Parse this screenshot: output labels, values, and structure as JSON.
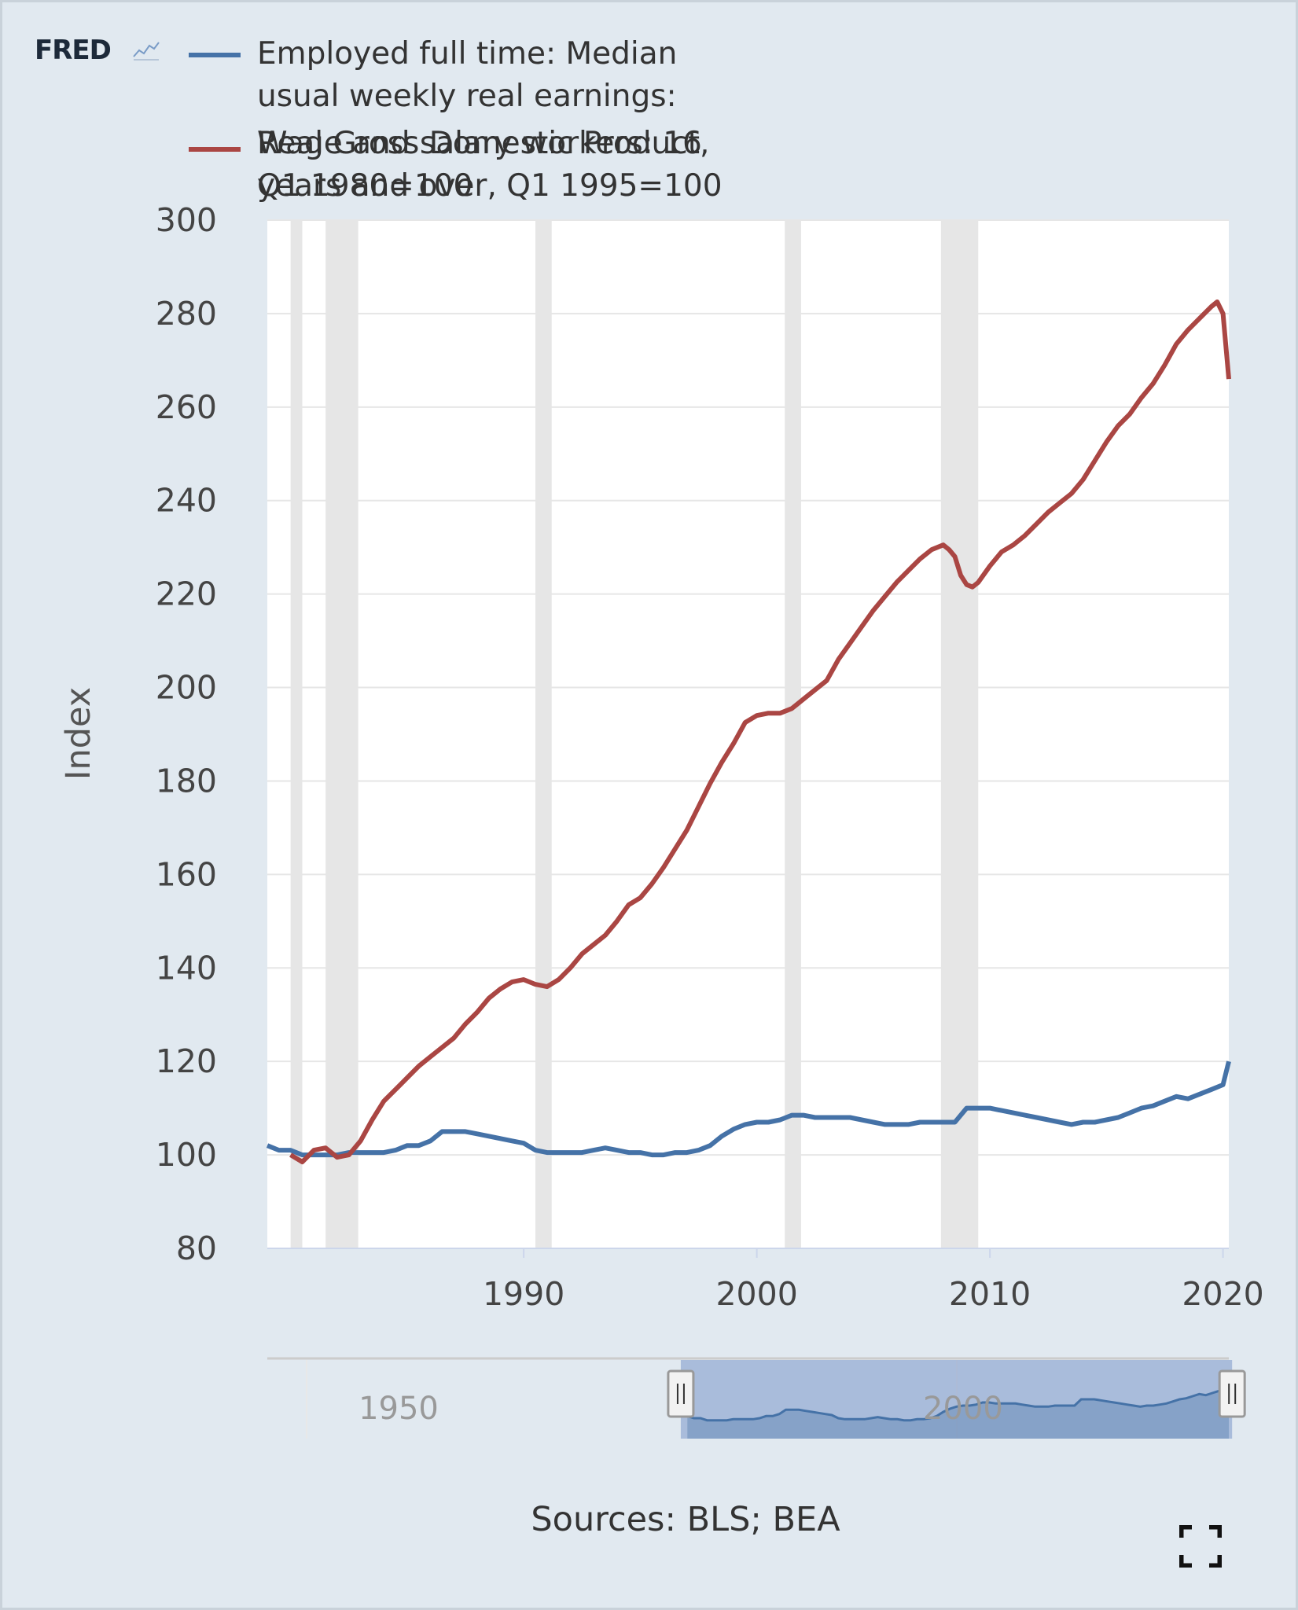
{
  "header": {
    "logo_text": "FRED",
    "logo_mark_icon": "sparkline-icon"
  },
  "legend": [
    {
      "color": "#4572a7",
      "lines": [
        "Employed full time: Median",
        "usual weekly real earnings:"
      ]
    },
    {
      "color": "#aa4643",
      "lines": [
        "Real Gross Domestic Product,",
        "Q1 1980=100"
      ]
    },
    {
      "color": "#aa4643",
      "lines": [
        "Wage and salary workers: 16",
        "years and over, Q1 1995=100"
      ]
    }
  ],
  "footer": {
    "sources": "Sources: BLS; BEA",
    "expand_icon": "fullscreen-icon"
  },
  "navigator": {
    "labels": [
      {
        "text": "1950",
        "year": 1957
      },
      {
        "text": "2000",
        "year": 2000
      }
    ],
    "range_start": 1978.5,
    "range_end": 2020.5,
    "series_range": [
      1979,
      2020.25
    ],
    "data_range": [
      1947,
      2020.25
    ],
    "handle_icon": "drag-handle-icon"
  },
  "chart_data": {
    "type": "line",
    "ylabel": "Index",
    "xlabel": "",
    "xlim": [
      1979.0,
      2020.25
    ],
    "ylim": [
      80,
      300
    ],
    "yticks": [
      80,
      100,
      120,
      140,
      160,
      180,
      200,
      220,
      240,
      260,
      280,
      300
    ],
    "xticks": [
      1990,
      2000,
      2010,
      2020
    ],
    "recessions": [
      [
        1980.0,
        1980.5
      ],
      [
        1981.5,
        1982.9
      ],
      [
        1990.5,
        1991.2
      ],
      [
        2001.2,
        2001.9
      ],
      [
        2007.9,
        2009.5
      ]
    ],
    "grid": true,
    "legend_position": "top-left",
    "series": [
      {
        "name": "Employed full time: Median usual weekly real earnings: Wage and salary workers: 16 years and over, Q1 1995=100",
        "color": "#4572a7",
        "x": [
          1979.0,
          1979.5,
          1980.0,
          1980.5,
          1981.0,
          1981.5,
          1982.0,
          1982.5,
          1983.0,
          1983.5,
          1984.0,
          1984.5,
          1985.0,
          1985.5,
          1986.0,
          1986.5,
          1987.0,
          1987.5,
          1988.0,
          1988.5,
          1989.0,
          1989.5,
          1990.0,
          1990.5,
          1991.0,
          1991.5,
          1992.0,
          1992.5,
          1993.0,
          1993.5,
          1994.0,
          1994.5,
          1995.0,
          1995.5,
          1996.0,
          1996.5,
          1997.0,
          1997.5,
          1998.0,
          1998.5,
          1999.0,
          1999.5,
          2000.0,
          2000.5,
          2001.0,
          2001.5,
          2002.0,
          2002.5,
          2003.0,
          2003.5,
          2004.0,
          2004.5,
          2005.0,
          2005.5,
          2006.0,
          2006.5,
          2007.0,
          2007.5,
          2008.0,
          2008.5,
          2009.0,
          2009.5,
          2010.0,
          2010.5,
          2011.0,
          2011.5,
          2012.0,
          2012.5,
          2013.0,
          2013.5,
          2014.0,
          2014.5,
          2015.0,
          2015.5,
          2016.0,
          2016.5,
          2017.0,
          2017.5,
          2018.0,
          2018.5,
          2019.0,
          2019.5,
          2020.0,
          2020.25
        ],
        "y": [
          102,
          101,
          101,
          100,
          100,
          100,
          100,
          100.5,
          100.5,
          100.5,
          100.5,
          101,
          102,
          102,
          103,
          105,
          105,
          105,
          104.5,
          104,
          103.5,
          103,
          102.5,
          101,
          100.5,
          100.5,
          100.5,
          100.5,
          101,
          101.5,
          101,
          100.5,
          100.5,
          100,
          100,
          100.5,
          100.5,
          101,
          102,
          104,
          105.5,
          106.5,
          107,
          107,
          107.5,
          108.5,
          108.5,
          108,
          108,
          108,
          108,
          107.5,
          107,
          106.5,
          106.5,
          106.5,
          107,
          107,
          107,
          107,
          110,
          110,
          110,
          109.5,
          109,
          108.5,
          108,
          107.5,
          107,
          106.5,
          107,
          107,
          107.5,
          108,
          109,
          110,
          110.5,
          111.5,
          112.5,
          112,
          113,
          114,
          115,
          120
        ]
      },
      {
        "name": "Real Gross Domestic Product, Q1 1980=100",
        "color": "#aa4643",
        "x": [
          1980.0,
          1980.5,
          1981.0,
          1981.5,
          1982.0,
          1982.5,
          1983.0,
          1983.5,
          1984.0,
          1984.5,
          1985.0,
          1985.5,
          1986.0,
          1986.5,
          1987.0,
          1987.5,
          1988.0,
          1988.5,
          1989.0,
          1989.5,
          1990.0,
          1990.5,
          1991.0,
          1991.5,
          1992.0,
          1992.5,
          1993.0,
          1993.5,
          1994.0,
          1994.5,
          1995.0,
          1995.5,
          1996.0,
          1996.5,
          1997.0,
          1997.5,
          1998.0,
          1998.5,
          1999.0,
          1999.5,
          2000.0,
          2000.5,
          2001.0,
          2001.5,
          2002.0,
          2002.5,
          2003.0,
          2003.5,
          2004.0,
          2004.5,
          2005.0,
          2005.5,
          2006.0,
          2006.5,
          2007.0,
          2007.5,
          2008.0,
          2008.25,
          2008.5,
          2008.75,
          2009.0,
          2009.25,
          2009.5,
          2010.0,
          2010.5,
          2011.0,
          2011.5,
          2012.0,
          2012.5,
          2013.0,
          2013.5,
          2014.0,
          2014.5,
          2015.0,
          2015.5,
          2016.0,
          2016.5,
          2017.0,
          2017.5,
          2018.0,
          2018.5,
          2019.0,
          2019.5,
          2019.75,
          2020.0,
          2020.25
        ],
        "y": [
          100,
          98.5,
          101,
          101.5,
          99.5,
          100,
          103,
          107.5,
          111.5,
          114,
          116.5,
          119,
          121,
          123,
          125,
          128,
          130.5,
          133.5,
          135.5,
          137,
          137.5,
          136.5,
          136,
          137.5,
          140,
          143,
          145,
          147,
          150,
          153.5,
          155,
          158,
          161.5,
          165.5,
          169.5,
          174.5,
          179.5,
          184,
          188,
          192.5,
          194,
          194.5,
          194.5,
          195.5,
          197.5,
          199.5,
          201.5,
          206,
          209.5,
          213,
          216.5,
          219.5,
          222.5,
          225,
          227.5,
          229.5,
          230.5,
          229.5,
          228,
          224,
          222,
          221.5,
          222.5,
          226,
          229,
          230.5,
          232.5,
          235,
          237.5,
          239.5,
          241.5,
          244.5,
          248.5,
          252.5,
          256,
          258.5,
          262,
          265,
          269,
          273.5,
          276.5,
          279,
          281.5,
          282.5,
          280,
          266
        ]
      }
    ]
  }
}
